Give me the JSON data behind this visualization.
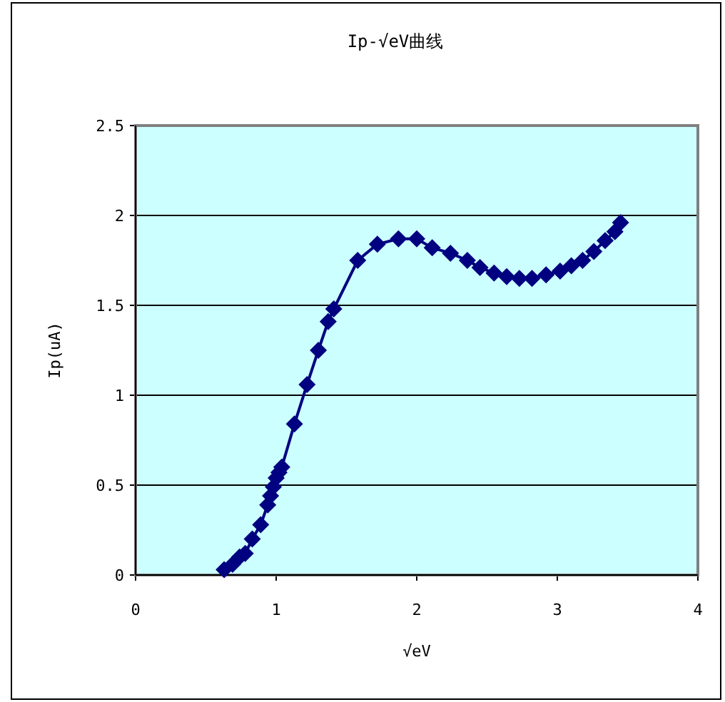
{
  "chart_data": {
    "type": "line",
    "title": "Ip-√eV曲线",
    "xlabel": "√eV",
    "ylabel": "Ip(uA)",
    "series": [
      {
        "color": "#000080",
        "x": [
          0.63,
          0.69,
          0.74,
          0.78,
          0.83,
          0.89,
          0.94,
          0.96,
          0.98,
          1.0,
          1.02,
          1.04,
          1.13,
          1.22,
          1.3,
          1.37,
          1.41,
          1.58,
          1.72,
          1.87,
          2.0,
          2.11,
          2.24,
          2.36,
          2.45,
          2.55,
          2.64,
          2.73,
          2.82,
          2.92,
          3.02,
          3.1,
          3.18,
          3.26,
          3.34,
          3.41,
          3.45
        ],
        "values": [
          0.03,
          0.06,
          0.1,
          0.12,
          0.2,
          0.28,
          0.39,
          0.44,
          0.49,
          0.54,
          0.57,
          0.6,
          0.84,
          1.06,
          1.25,
          1.41,
          1.48,
          1.75,
          1.84,
          1.87,
          1.87,
          1.82,
          1.79,
          1.75,
          1.71,
          1.68,
          1.66,
          1.65,
          1.65,
          1.67,
          1.69,
          1.72,
          1.75,
          1.8,
          1.86,
          1.91,
          1.96
        ]
      }
    ],
    "xlim": [
      0,
      4
    ],
    "ylim": [
      0,
      2.5
    ],
    "xticks": [
      0,
      1,
      2,
      3,
      4
    ],
    "yticks": [
      0,
      0.5,
      1,
      1.5,
      2,
      2.5
    ],
    "grid": "y",
    "marker": "diamond",
    "line_style": "solid"
  }
}
